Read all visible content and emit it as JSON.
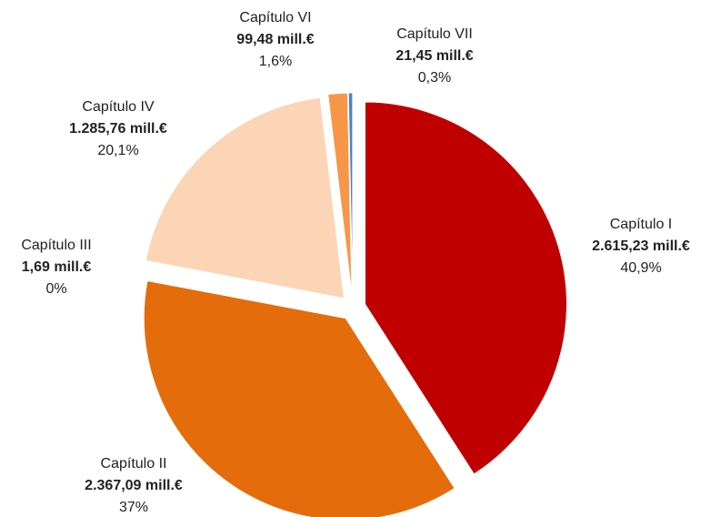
{
  "chart_data": {
    "type": "pie",
    "categories": [
      "Capítulo I",
      "Capítulo II",
      "Capítulo III",
      "Capítulo IV",
      "Capítulo VI",
      "Capítulo VII"
    ],
    "values": [
      2615.23,
      2367.09,
      1.69,
      1285.76,
      99.48,
      21.45
    ],
    "value_labels": [
      "2.615,23 mill.€",
      "2.367,09 mill.€",
      "1,69 mill.€",
      "1.285,76 mill.€",
      "99,48 mill.€",
      "21,45 mill.€"
    ],
    "percentages": [
      40.9,
      37,
      0,
      20.1,
      1.6,
      0.3
    ],
    "percentage_labels": [
      "40,9%",
      "37%",
      "0%",
      "20,1%",
      "1,6%",
      "0,3%"
    ],
    "colors": [
      "#c00000",
      "#e46c0a",
      "#f2a46e",
      "#fbd5b5",
      "#f79646",
      "#4f81bd"
    ]
  }
}
